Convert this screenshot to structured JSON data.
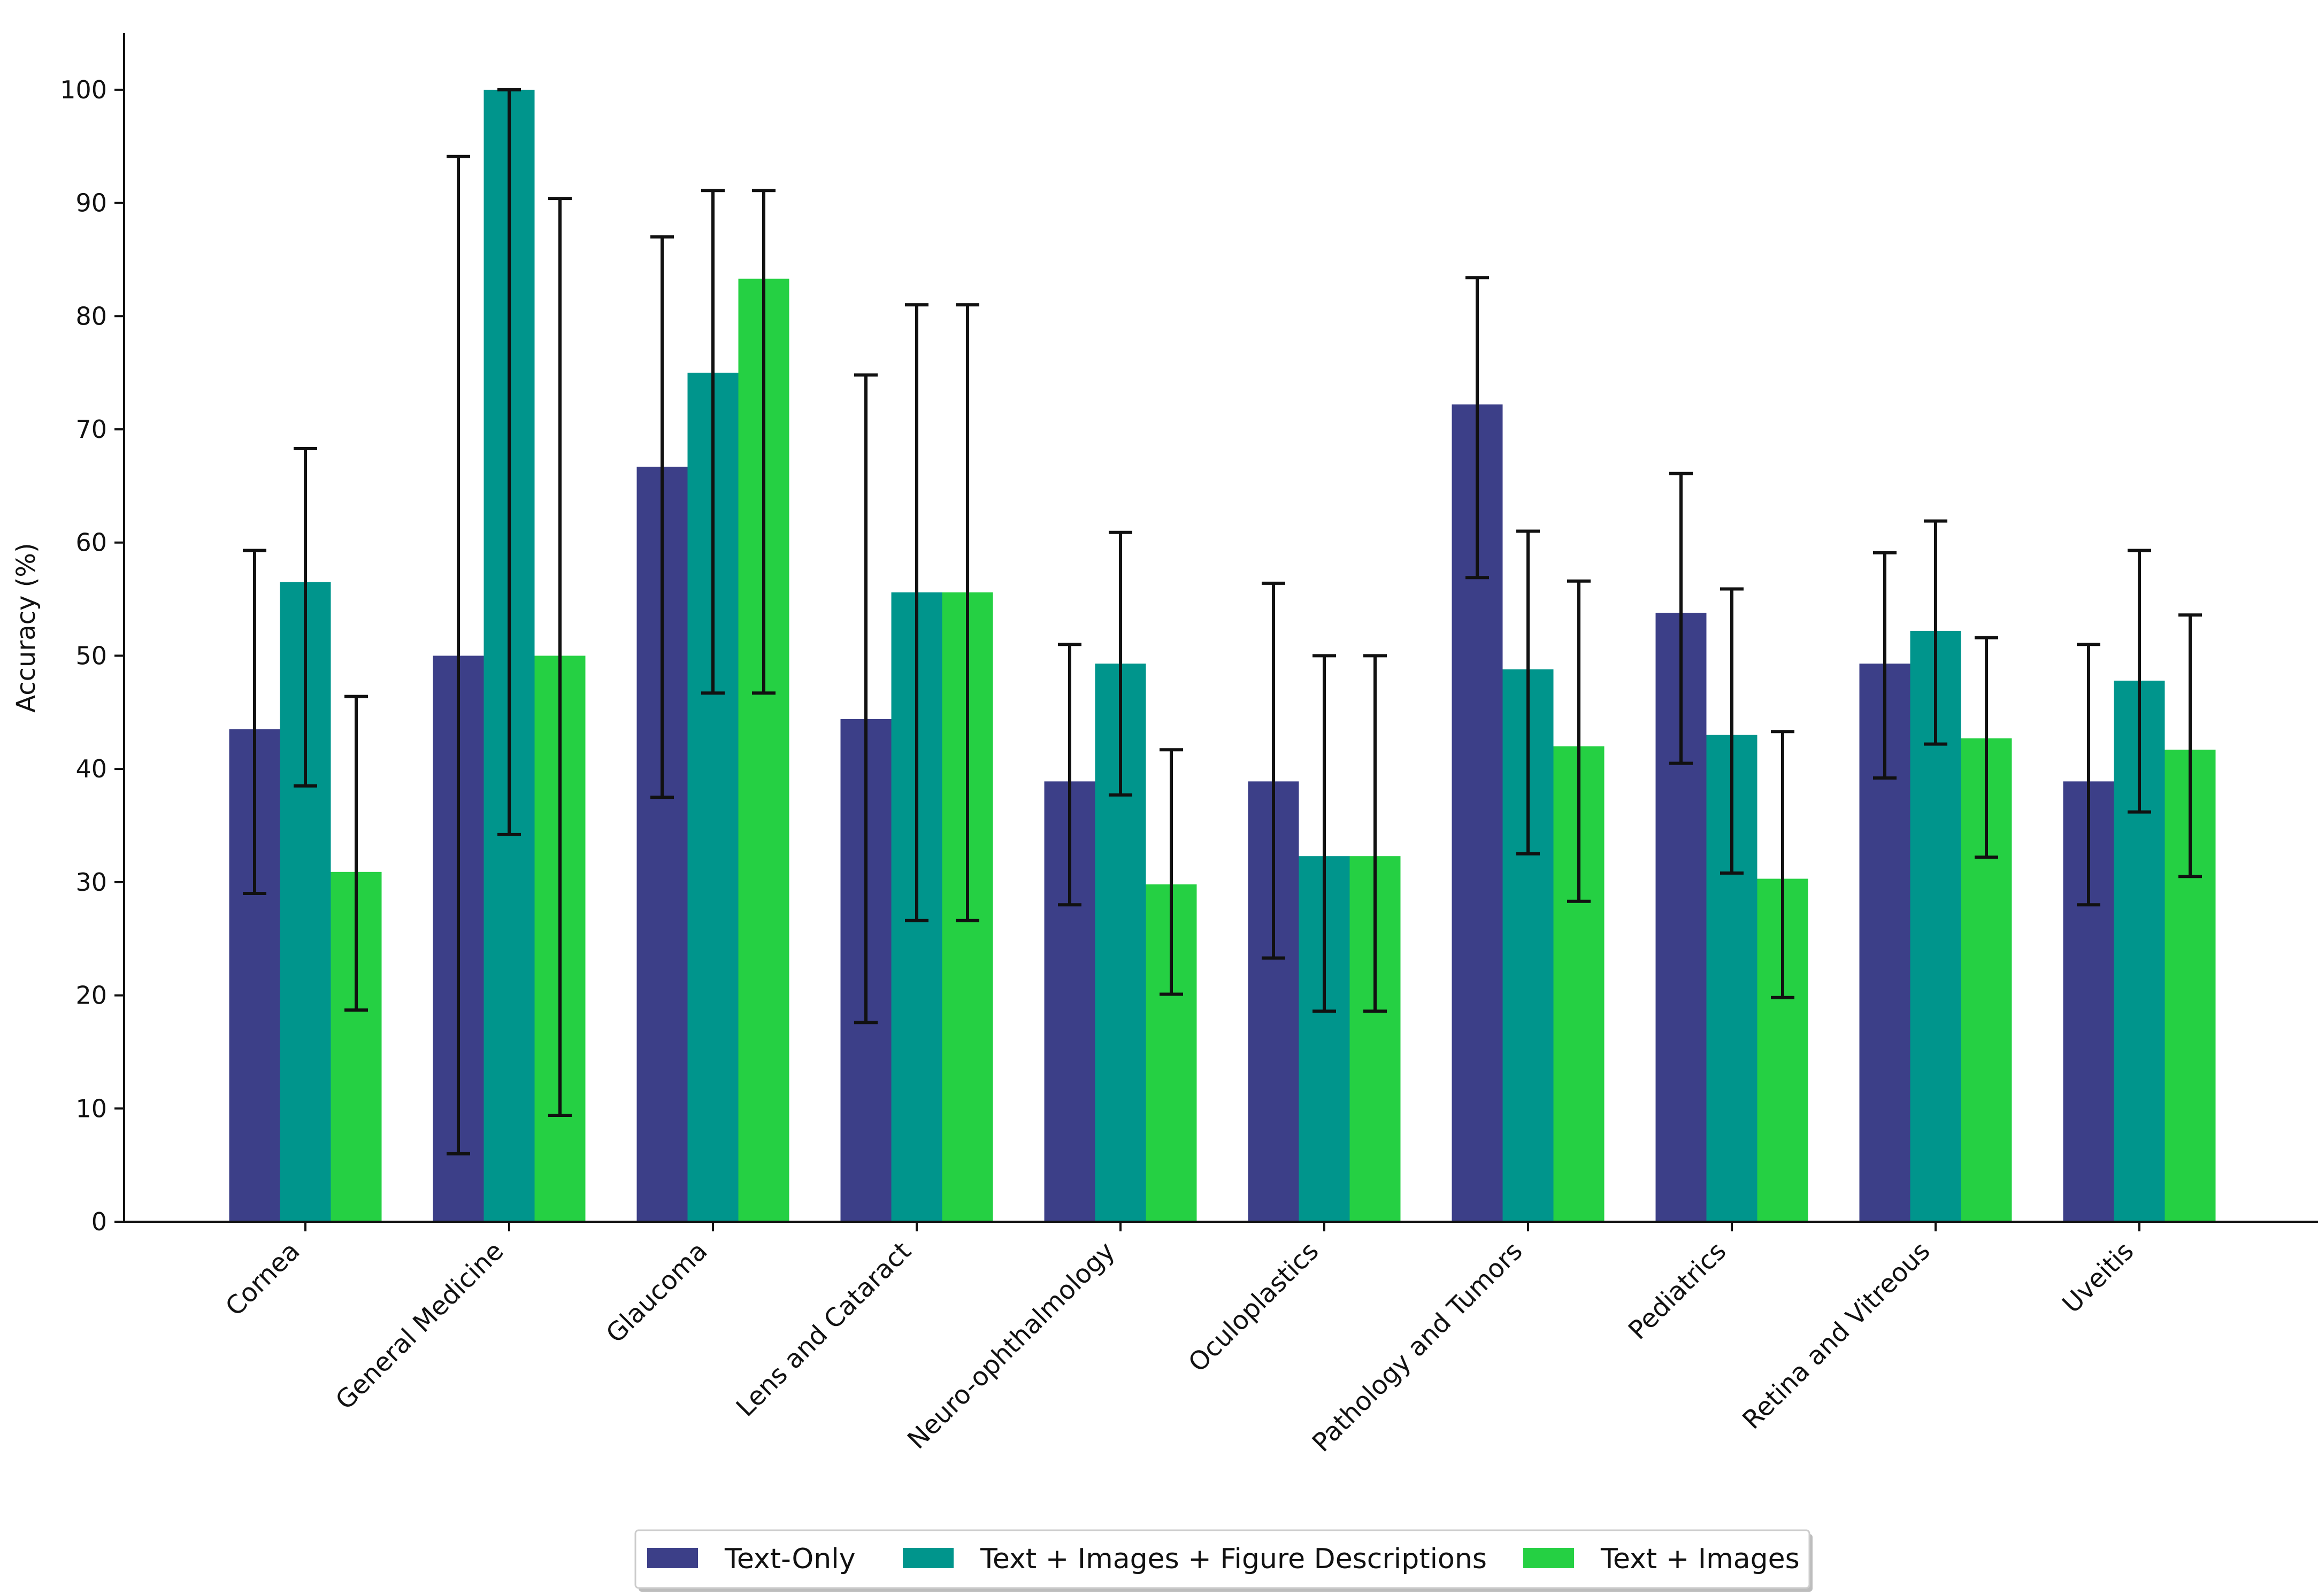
{
  "chart_data": {
    "type": "bar",
    "title": "",
    "xlabel": "",
    "ylabel": "Accuracy (%)",
    "ylim": [
      0,
      105
    ],
    "yticks": [
      0,
      10,
      20,
      30,
      40,
      50,
      60,
      70,
      80,
      90,
      100
    ],
    "grid": false,
    "legend_position": "bottom-center",
    "categories": [
      "Cornea",
      "General Medicine",
      "Glaucoma",
      "Lens and Cataract",
      "Neuro-ophthalmology",
      "Oculoplastics",
      "Pathology and Tumors",
      "Pediatrics",
      "Retina and Vitreous",
      "Uveitis"
    ],
    "series": [
      {
        "name": "Text-Only",
        "color": "#3c3f88",
        "values": [
          43.5,
          50.0,
          66.7,
          44.4,
          38.9,
          38.9,
          72.2,
          53.8,
          49.3,
          38.9
        ],
        "error_low": [
          29.0,
          6.0,
          37.5,
          17.6,
          28.0,
          23.3,
          56.9,
          40.5,
          39.2,
          28.0
        ],
        "error_high": [
          59.3,
          94.1,
          87.0,
          74.8,
          51.0,
          56.4,
          83.4,
          66.1,
          59.1,
          51.0
        ]
      },
      {
        "name": "Text + Images + Figure Descriptions",
        "color": "#00958c",
        "values": [
          56.5,
          100.0,
          75.0,
          55.6,
          49.3,
          32.3,
          48.8,
          43.0,
          52.2,
          47.8
        ],
        "error_low": [
          38.5,
          34.2,
          46.7,
          26.6,
          37.7,
          18.6,
          32.5,
          30.8,
          42.2,
          36.2
        ],
        "error_high": [
          68.3,
          100.0,
          91.1,
          81.0,
          60.9,
          50.0,
          61.0,
          55.9,
          61.9,
          59.3
        ]
      },
      {
        "name": "Text + Images",
        "color": "#25d043",
        "values": [
          30.9,
          50.0,
          83.3,
          55.6,
          29.8,
          32.3,
          42.0,
          30.3,
          42.7,
          41.7
        ],
        "error_low": [
          18.7,
          9.4,
          46.7,
          26.6,
          20.1,
          18.6,
          28.3,
          19.8,
          32.2,
          30.5
        ],
        "error_high": [
          46.4,
          90.4,
          91.1,
          81.0,
          41.7,
          50.0,
          56.6,
          43.3,
          51.6,
          53.6
        ]
      }
    ]
  }
}
